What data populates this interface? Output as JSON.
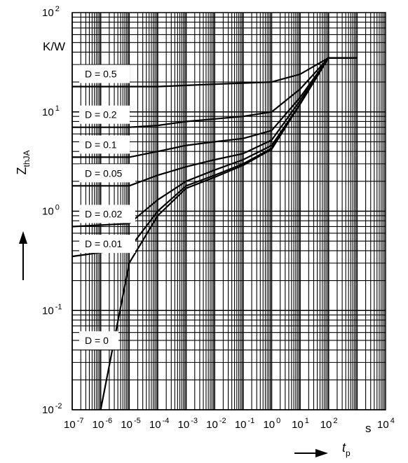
{
  "chart_data": {
    "type": "line",
    "title": "",
    "x_scale": "log",
    "y_scale": "log",
    "xlim": [
      1e-07,
      10000
    ],
    "ylim": [
      0.01,
      100
    ],
    "grid": true,
    "xlabel": {
      "main": "t",
      "sub": "p"
    },
    "ylabel": {
      "main": "Z",
      "sub": "thJA"
    },
    "x_unit": "s",
    "y_unit": "K/W",
    "x_ticks": [
      {
        "base": "10",
        "exp": "-7"
      },
      {
        "base": "10",
        "exp": "-6"
      },
      {
        "base": "10",
        "exp": "-5"
      },
      {
        "base": "10",
        "exp": "-4"
      },
      {
        "base": "10",
        "exp": "-3"
      },
      {
        "base": "10",
        "exp": "-2"
      },
      {
        "base": "10",
        "exp": "-1"
      },
      {
        "base": "10",
        "exp": "0"
      },
      {
        "base": "10",
        "exp": "1"
      },
      {
        "base": "10",
        "exp": "2"
      },
      {
        "base": "10",
        "exp": "4"
      }
    ],
    "y_ticks": [
      {
        "base": "10",
        "exp": "-2"
      },
      {
        "base": "10",
        "exp": "-1"
      },
      {
        "base": "10",
        "exp": "0"
      },
      {
        "base": "10",
        "exp": "1"
      },
      {
        "base": "10",
        "exp": "2"
      }
    ],
    "series": [
      {
        "name": "D = 0.5",
        "x": [
          1e-07,
          1e-05,
          0.0001,
          0.001,
          0.01,
          0.1,
          1,
          10,
          100,
          1000
        ],
        "y": [
          18,
          18,
          18,
          18.5,
          19,
          19.5,
          20,
          24,
          35,
          35
        ]
      },
      {
        "name": "D = 0.2",
        "x": [
          1e-07,
          1e-05,
          0.0001,
          0.001,
          0.01,
          0.1,
          1,
          10,
          100,
          1000
        ],
        "y": [
          7,
          7,
          7.3,
          8,
          8.5,
          9,
          10,
          17,
          35,
          35
        ]
      },
      {
        "name": "D = 0.1",
        "x": [
          1e-07,
          1e-05,
          0.0001,
          0.001,
          0.01,
          0.1,
          1,
          10,
          100,
          1000
        ],
        "y": [
          3.5,
          3.5,
          4,
          4.6,
          5,
          5.4,
          6.5,
          14,
          35,
          35
        ]
      },
      {
        "name": "D = 0.05",
        "x": [
          1e-07,
          1e-05,
          0.0001,
          0.001,
          0.01,
          0.1,
          1,
          10,
          100,
          1000
        ],
        "y": [
          1.8,
          1.8,
          2.3,
          2.8,
          3.3,
          3.8,
          5.2,
          13,
          35,
          35
        ]
      },
      {
        "name": "D = 0.02",
        "x": [
          1e-07,
          1e-05,
          0.0001,
          0.001,
          0.01,
          0.1,
          1,
          10,
          100,
          1000
        ],
        "y": [
          0.7,
          0.75,
          1.3,
          2,
          2.6,
          3.3,
          4.6,
          12,
          35,
          35
        ]
      },
      {
        "name": "D = 0.01",
        "x": [
          1e-07,
          1e-05,
          0.0001,
          0.001,
          0.01,
          0.1,
          1,
          10,
          100,
          1000
        ],
        "y": [
          0.35,
          0.42,
          1,
          1.8,
          2.3,
          3,
          4.3,
          12,
          35,
          35
        ]
      },
      {
        "name": "D = 0",
        "x": [
          1e-06,
          1e-05,
          0.0001,
          0.001,
          0.01,
          0.1,
          1,
          10,
          100,
          1000
        ],
        "y": [
          0.01,
          0.3,
          0.9,
          1.7,
          2.2,
          2.9,
          4.2,
          12,
          35,
          35
        ]
      }
    ]
  }
}
